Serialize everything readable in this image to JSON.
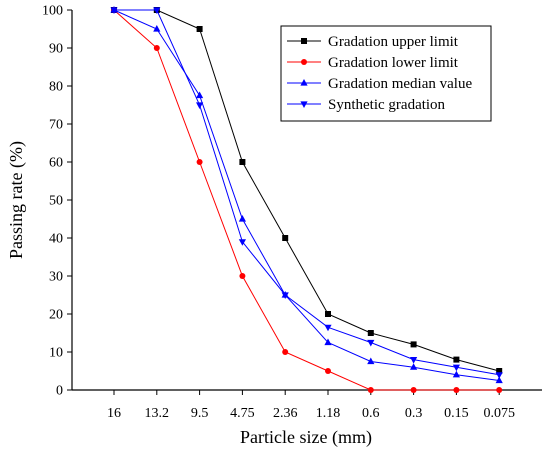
{
  "chart_data": {
    "type": "line",
    "xlabel": "Particle size (mm)",
    "ylabel": "Passing rate (%)",
    "categories": [
      "16",
      "13.2",
      "9.5",
      "4.75",
      "2.36",
      "1.18",
      "0.6",
      "0.3",
      "0.15",
      "0.075"
    ],
    "ylim": [
      0,
      100
    ],
    "yticks": [
      0,
      10,
      20,
      30,
      40,
      50,
      60,
      70,
      80,
      90,
      100
    ],
    "grid": false,
    "legend_position": "top-right",
    "series": [
      {
        "name": "Gradation upper limit",
        "color": "#000000",
        "marker": "square",
        "values": [
          100,
          100,
          95,
          60,
          40,
          20,
          15,
          12,
          8,
          5
        ]
      },
      {
        "name": "Gradation lower limit",
        "color": "#ff0000",
        "marker": "circle",
        "values": [
          100,
          90,
          60,
          30,
          10,
          5,
          0,
          0,
          0,
          0
        ]
      },
      {
        "name": "Gradation median value",
        "color": "#0000ff",
        "marker": "triangle-up",
        "values": [
          100,
          95,
          77.5,
          45,
          25,
          12.5,
          7.5,
          6,
          4,
          2.5
        ]
      },
      {
        "name": "Synthetic gradation",
        "color": "#0000ff",
        "marker": "triangle-down",
        "values": [
          100,
          100,
          75,
          39,
          25,
          16.5,
          12.5,
          8,
          6,
          4
        ]
      }
    ]
  }
}
